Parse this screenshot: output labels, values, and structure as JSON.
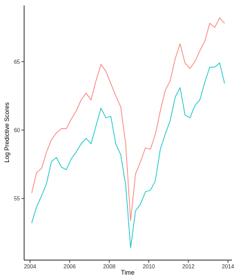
{
  "chart_data": {
    "type": "line",
    "title": "",
    "xlabel": "Time",
    "ylabel": "Log Predictive Scores",
    "xlim": [
      2003.7,
      2014.2
    ],
    "ylim": [
      50.5,
      69.1
    ],
    "grid": false,
    "legend": "none",
    "x_ticks": [
      2004,
      2006,
      2008,
      2010,
      2012,
      2014
    ],
    "x_tick_labels": [
      "2004",
      "2006",
      "2008",
      "2010",
      "2012",
      "2014"
    ],
    "y_ticks": [
      55,
      60,
      65
    ],
    "y_tick_labels": [
      "55",
      "60",
      "65"
    ],
    "x": [
      2004.08,
      2004.33,
      2004.58,
      2004.83,
      2005.08,
      2005.33,
      2005.58,
      2005.83,
      2006.08,
      2006.33,
      2006.58,
      2006.83,
      2007.08,
      2007.33,
      2007.58,
      2007.83,
      2008.08,
      2008.33,
      2008.58,
      2008.83,
      2009.08,
      2009.33,
      2009.58,
      2009.83,
      2010.08,
      2010.33,
      2010.58,
      2010.83,
      2011.08,
      2011.33,
      2011.58,
      2011.83,
      2012.08,
      2012.33,
      2012.58,
      2012.83,
      2013.08,
      2013.33,
      2013.58,
      2013.83
    ],
    "series": [
      {
        "color": "#F8766D",
        "values": [
          55.4,
          56.9,
          57.2,
          58.4,
          59.3,
          59.8,
          60.1,
          60.1,
          60.8,
          61.4,
          62.2,
          62.7,
          62.2,
          63.6,
          64.8,
          64.3,
          63.4,
          62.5,
          61.7,
          59.0,
          53.4,
          56.8,
          57.7,
          58.7,
          58.6,
          59.7,
          61.4,
          62.9,
          63.6,
          65.2,
          66.3,
          64.9,
          64.5,
          65.0,
          65.8,
          66.5,
          67.8,
          67.5,
          68.2,
          67.8
        ]
      },
      {
        "color": "#00BFC4",
        "values": [
          53.2,
          54.4,
          55.2,
          56.1,
          57.7,
          58.0,
          57.3,
          57.1,
          57.9,
          58.4,
          59.0,
          59.4,
          59.0,
          60.3,
          61.6,
          60.9,
          61.0,
          59.0,
          58.2,
          56.0,
          51.4,
          54.1,
          54.6,
          55.5,
          55.6,
          56.3,
          58.6,
          59.7,
          60.7,
          62.4,
          63.1,
          61.1,
          60.9,
          61.8,
          62.2,
          63.5,
          64.6,
          64.6,
          64.9,
          63.4
        ]
      }
    ]
  }
}
